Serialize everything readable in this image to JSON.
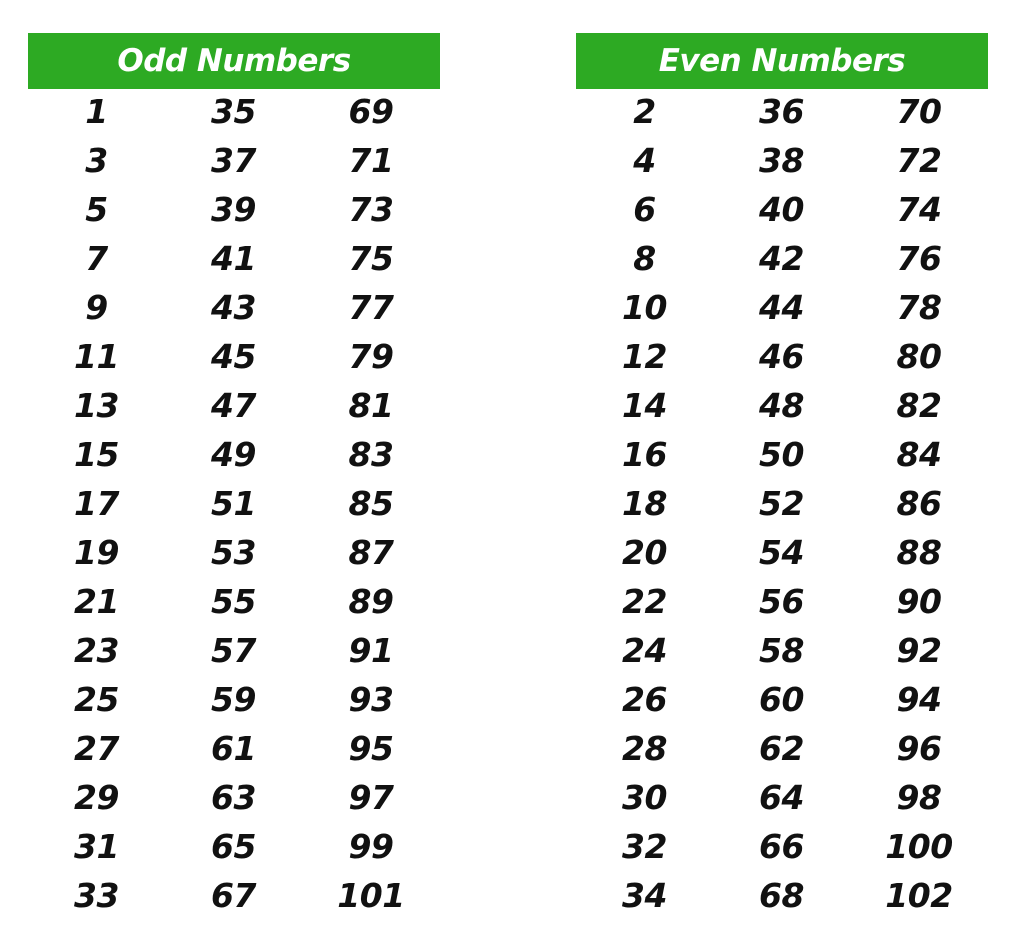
{
  "colors": {
    "header_background": "#2DAA23",
    "header_text": "#FFFFFF",
    "number_text": "#111111",
    "page_background": "#FFFFFF"
  },
  "odd": {
    "title": "Odd Numbers",
    "columns": [
      [
        "1",
        "3",
        "5",
        "7",
        "9",
        "11",
        "13",
        "15",
        "17",
        "19",
        "21",
        "23",
        "25",
        "27",
        "29",
        "31",
        "33"
      ],
      [
        "35",
        "37",
        "39",
        "41",
        "43",
        "45",
        "47",
        "49",
        "51",
        "53",
        "55",
        "57",
        "59",
        "61",
        "63",
        "65",
        "67"
      ],
      [
        "69",
        "71",
        "73",
        "75",
        "77",
        "79",
        "81",
        "83",
        "85",
        "87",
        "89",
        "91",
        "93",
        "95",
        "97",
        "99",
        "101"
      ]
    ]
  },
  "even": {
    "title": "Even Numbers",
    "columns": [
      [
        "2",
        "4",
        "6",
        "8",
        "10",
        "12",
        "14",
        "16",
        "18",
        "20",
        "22",
        "24",
        "26",
        "28",
        "30",
        "32",
        "34"
      ],
      [
        "36",
        "38",
        "40",
        "42",
        "44",
        "46",
        "48",
        "50",
        "52",
        "54",
        "56",
        "58",
        "60",
        "62",
        "64",
        "66",
        "68"
      ],
      [
        "70",
        "72",
        "74",
        "76",
        "78",
        "80",
        "82",
        "84",
        "86",
        "88",
        "90",
        "92",
        "94",
        "96",
        "98",
        "100",
        "102"
      ]
    ]
  }
}
